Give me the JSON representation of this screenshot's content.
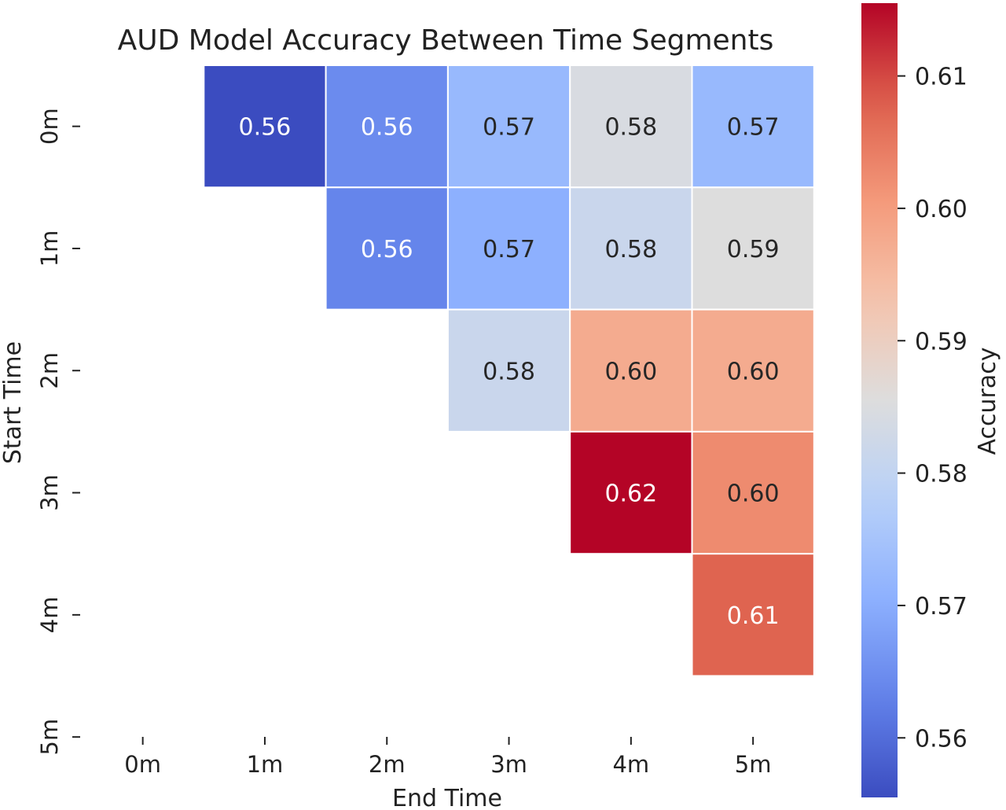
{
  "chart_data": {
    "type": "heatmap",
    "title": "AUD Model Accuracy Between Time Segments",
    "xlabel": "End Time",
    "ylabel": "Start Time",
    "x_categories": [
      "0m",
      "1m",
      "2m",
      "3m",
      "4m",
      "5m"
    ],
    "y_categories": [
      "0m",
      "1m",
      "2m",
      "3m",
      "4m",
      "5m"
    ],
    "cells": [
      {
        "row": 0,
        "col": 1,
        "value": 0.5555,
        "label": "0.56"
      },
      {
        "row": 0,
        "col": 2,
        "value": 0.5645,
        "label": "0.56"
      },
      {
        "row": 0,
        "col": 3,
        "value": 0.5725,
        "label": "0.57"
      },
      {
        "row": 0,
        "col": 4,
        "value": 0.5845,
        "label": "0.58"
      },
      {
        "row": 0,
        "col": 5,
        "value": 0.5725,
        "label": "0.57"
      },
      {
        "row": 1,
        "col": 2,
        "value": 0.5635,
        "label": "0.56"
      },
      {
        "row": 1,
        "col": 3,
        "value": 0.5705,
        "label": "0.57"
      },
      {
        "row": 1,
        "col": 4,
        "value": 0.5815,
        "label": "0.58"
      },
      {
        "row": 1,
        "col": 5,
        "value": 0.5855,
        "label": "0.59"
      },
      {
        "row": 2,
        "col": 3,
        "value": 0.5815,
        "label": "0.58"
      },
      {
        "row": 2,
        "col": 4,
        "value": 0.5975,
        "label": "0.60"
      },
      {
        "row": 2,
        "col": 5,
        "value": 0.5975,
        "label": "0.60"
      },
      {
        "row": 3,
        "col": 4,
        "value": 0.6155,
        "label": "0.62"
      },
      {
        "row": 3,
        "col": 5,
        "value": 0.6025,
        "label": "0.60"
      },
      {
        "row": 4,
        "col": 5,
        "value": 0.6075,
        "label": "0.61"
      }
    ],
    "colorbar": {
      "label": "Accuracy",
      "colormap": "coolwarm",
      "range": [
        0.5555,
        0.6155
      ],
      "ticks": [
        0.56,
        0.57,
        0.58,
        0.59,
        0.6,
        0.61
      ],
      "tick_labels": [
        "0.56",
        "0.57",
        "0.58",
        "0.59",
        "0.60",
        "0.61"
      ]
    },
    "grid": false
  }
}
